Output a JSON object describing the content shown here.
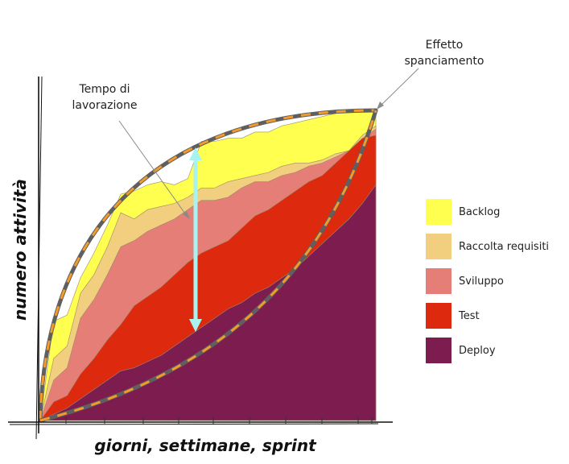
{
  "chart_data": {
    "type": "area",
    "xlabel": "giorni, settimane, sprint",
    "ylabel": "numero attività",
    "x": [
      0,
      1,
      2,
      3,
      4,
      5,
      6,
      7,
      8,
      9,
      10,
      11,
      12,
      13,
      14,
      15,
      16,
      17,
      18,
      19,
      20,
      21,
      22,
      23,
      24,
      25
    ],
    "ylim": [
      0,
      100
    ],
    "legend_position": "right",
    "series": [
      {
        "name": "Deploy",
        "color": "#7d1d4f",
        "values": [
          0,
          2,
          4,
          7,
          10,
          13,
          16,
          17,
          19,
          21,
          24,
          27,
          30,
          33,
          36,
          38,
          41,
          43,
          46,
          49,
          53,
          57,
          61,
          65,
          70,
          76
        ]
      },
      {
        "name": "Test",
        "color": "#dd2a0e",
        "values": [
          0,
          6,
          8,
          15,
          20,
          26,
          31,
          37,
          40,
          43,
          47,
          51,
          54,
          56,
          58,
          62,
          66,
          68,
          71,
          74,
          77,
          79,
          83,
          87,
          91,
          92
        ]
      },
      {
        "name": "Sviluppo",
        "color": "#e57e77",
        "values": [
          0,
          13,
          17,
          33,
          39,
          47,
          56,
          58,
          61,
          63,
          65,
          68,
          71,
          71,
          72,
          75,
          77,
          77,
          79,
          80,
          82,
          83,
          85,
          87,
          91,
          94
        ]
      },
      {
        "name": "Raccolta requisiti",
        "color": "#f2cf7e",
        "values": [
          0,
          20,
          24,
          41,
          47,
          56,
          67,
          65,
          68,
          69,
          70,
          72,
          75,
          75,
          77,
          78,
          79,
          80,
          82,
          83,
          83,
          84,
          86,
          87,
          92,
          95
        ]
      },
      {
        "name": "Backlog",
        "color": "#ffff4f",
        "values": [
          0,
          32,
          34,
          46,
          54,
          63,
          73,
          74,
          76,
          77,
          76,
          78,
          90,
          90,
          91,
          91,
          93,
          93,
          95,
          96,
          97,
          98,
          99,
          100,
          100,
          100
        ]
      }
    ],
    "annotations": [
      {
        "text_lines": [
          "Tempo di",
          "lavorazione"
        ]
      },
      {
        "text_lines": [
          "Effetto",
          "spanciamento"
        ]
      }
    ]
  }
}
